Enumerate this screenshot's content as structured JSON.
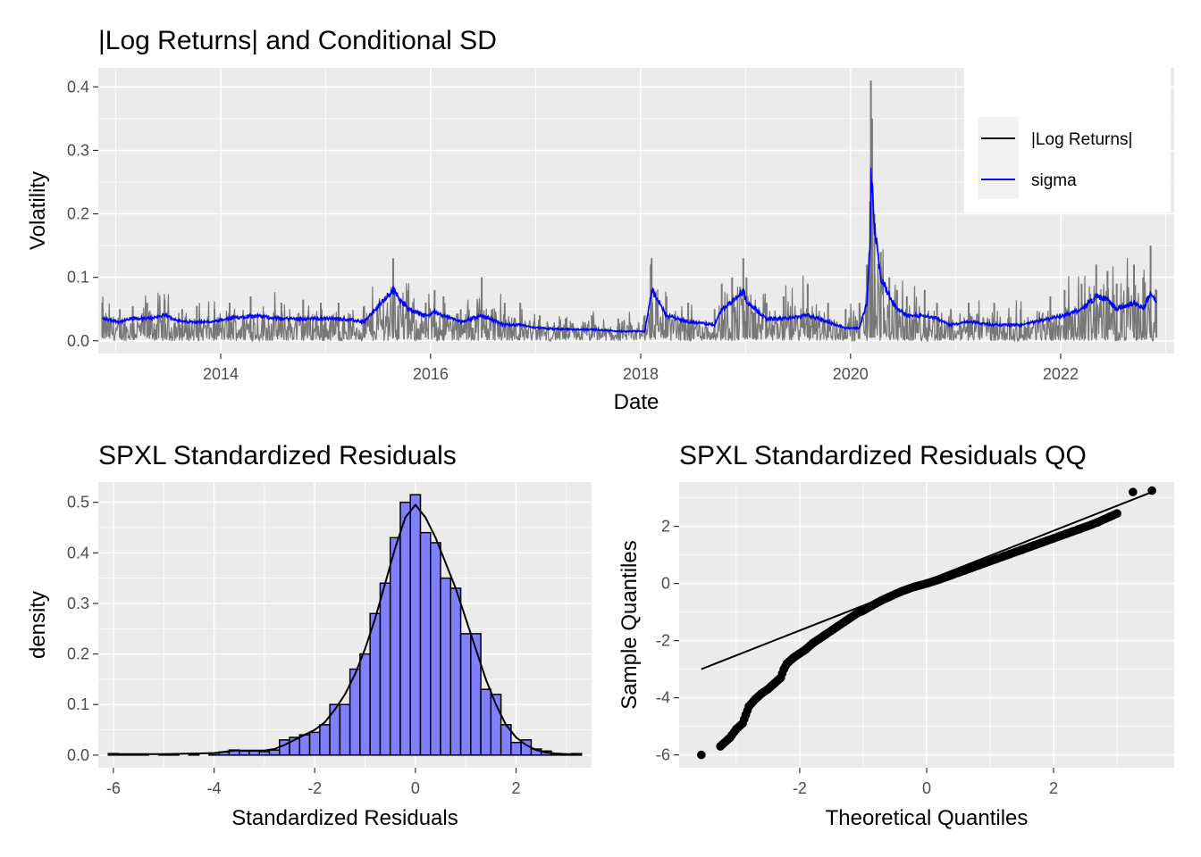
{
  "colors": {
    "panel_bg": "#ebebeb",
    "grid": "#ffffff",
    "abs_returns": "#777777",
    "sigma": "#0000ff",
    "hist_fill": "#8080ff",
    "qq_points": "#000000"
  },
  "chart_data": [
    {
      "type": "line",
      "title": "|Log Returns| and Conditional SD",
      "xlabel": "Date",
      "ylabel": "Volatility",
      "xlim": [
        "2012-11-01",
        "2023-01-31"
      ],
      "ylim": [
        -0.02,
        0.43
      ],
      "x_ticks": [
        "2014",
        "2016",
        "2018",
        "2020",
        "2022"
      ],
      "y_ticks": [
        "0.0",
        "0.1",
        "0.2",
        "0.3",
        "0.4"
      ],
      "grid": true,
      "legend": {
        "placement": "right",
        "items": [
          "|Log Returns|",
          "sigma"
        ]
      },
      "series": [
        {
          "name": "|Log Returns|",
          "color": "#000000",
          "x": [
            "2012-11-15",
            "2013-01-15",
            "2013-03-01",
            "2013-04-20",
            "2013-06-20",
            "2013-08-20",
            "2013-10-10",
            "2013-12-10",
            "2014-02-01",
            "2014-04-15",
            "2014-07-31",
            "2014-10-15",
            "2014-12-15",
            "2015-02-15",
            "2015-05-15",
            "2015-08-24",
            "2015-10-15",
            "2015-12-15",
            "2016-01-15",
            "2016-02-15",
            "2016-04-15",
            "2016-06-27",
            "2016-09-15",
            "2016-11-08",
            "2017-01-15",
            "2017-04-15",
            "2017-07-15",
            "2017-10-15",
            "2018-01-15",
            "2018-02-05",
            "2018-02-08",
            "2018-04-01",
            "2018-06-15",
            "2018-09-15",
            "2018-10-10",
            "2018-11-15",
            "2018-12-24",
            "2019-01-04",
            "2019-03-15",
            "2019-05-13",
            "2019-08-05",
            "2019-10-15",
            "2019-12-15",
            "2020-02-01",
            "2020-02-27",
            "2020-03-09",
            "2020-03-12",
            "2020-03-16",
            "2020-03-24",
            "2020-04-15",
            "2020-05-15",
            "2020-06-11",
            "2020-07-15",
            "2020-09-15",
            "2020-10-28",
            "2020-12-15",
            "2021-02-15",
            "2021-05-15",
            "2021-08-15",
            "2021-11-26",
            "2022-01-15",
            "2022-03-15",
            "2022-05-05",
            "2022-06-13",
            "2022-07-15",
            "2022-09-13",
            "2022-10-15",
            "2022-11-10",
            "2022-11-30"
          ],
          "values": [
            0.06,
            0.05,
            0.055,
            0.06,
            0.065,
            0.05,
            0.055,
            0.05,
            0.06,
            0.07,
            0.06,
            0.065,
            0.06,
            0.06,
            0.055,
            0.13,
            0.08,
            0.06,
            0.08,
            0.07,
            0.05,
            0.1,
            0.06,
            0.06,
            0.04,
            0.035,
            0.04,
            0.035,
            0.04,
            0.12,
            0.13,
            0.07,
            0.06,
            0.05,
            0.09,
            0.1,
            0.13,
            0.1,
            0.06,
            0.07,
            0.09,
            0.06,
            0.05,
            0.06,
            0.12,
            0.22,
            0.41,
            0.35,
            0.2,
            0.14,
            0.1,
            0.08,
            0.07,
            0.08,
            0.06,
            0.05,
            0.06,
            0.06,
            0.05,
            0.07,
            0.08,
            0.09,
            0.12,
            0.11,
            0.09,
            0.12,
            0.1,
            0.15,
            0.08
          ]
        },
        {
          "name": "sigma",
          "color": "#0000ff",
          "x": [
            "2012-11-15",
            "2013-01-15",
            "2013-03-01",
            "2013-04-20",
            "2013-06-20",
            "2013-08-20",
            "2013-10-10",
            "2013-12-10",
            "2014-02-01",
            "2014-04-15",
            "2014-07-31",
            "2014-10-15",
            "2014-12-15",
            "2015-02-15",
            "2015-05-15",
            "2015-08-24",
            "2015-10-15",
            "2015-12-15",
            "2016-01-15",
            "2016-02-15",
            "2016-04-15",
            "2016-06-27",
            "2016-09-15",
            "2016-11-08",
            "2017-01-15",
            "2017-04-15",
            "2017-07-15",
            "2017-10-15",
            "2018-01-15",
            "2018-02-05",
            "2018-02-08",
            "2018-04-01",
            "2018-06-15",
            "2018-09-15",
            "2018-10-10",
            "2018-11-15",
            "2018-12-24",
            "2019-01-04",
            "2019-03-15",
            "2019-05-13",
            "2019-08-05",
            "2019-10-15",
            "2019-12-15",
            "2020-02-01",
            "2020-02-27",
            "2020-03-09",
            "2020-03-12",
            "2020-03-16",
            "2020-03-24",
            "2020-04-15",
            "2020-05-15",
            "2020-06-11",
            "2020-07-15",
            "2020-09-15",
            "2020-10-28",
            "2020-12-15",
            "2021-02-15",
            "2021-05-15",
            "2021-08-15",
            "2021-11-26",
            "2022-01-15",
            "2022-03-15",
            "2022-05-05",
            "2022-06-13",
            "2022-07-15",
            "2022-09-13",
            "2022-10-15",
            "2022-11-10",
            "2022-11-30"
          ],
          "values": [
            0.035,
            0.03,
            0.035,
            0.035,
            0.04,
            0.03,
            0.03,
            0.03,
            0.035,
            0.04,
            0.035,
            0.035,
            0.035,
            0.035,
            0.03,
            0.08,
            0.05,
            0.04,
            0.045,
            0.04,
            0.03,
            0.04,
            0.025,
            0.025,
            0.02,
            0.018,
            0.018,
            0.015,
            0.015,
            0.07,
            0.08,
            0.04,
            0.03,
            0.025,
            0.05,
            0.06,
            0.08,
            0.06,
            0.035,
            0.035,
            0.04,
            0.03,
            0.02,
            0.02,
            0.06,
            0.15,
            0.265,
            0.24,
            0.18,
            0.1,
            0.07,
            0.05,
            0.04,
            0.04,
            0.035,
            0.025,
            0.03,
            0.025,
            0.025,
            0.035,
            0.04,
            0.05,
            0.07,
            0.065,
            0.05,
            0.06,
            0.05,
            0.075,
            0.06
          ]
        }
      ]
    },
    {
      "type": "bar",
      "title": "SPXL Standardized Residuals",
      "xlabel": "Standardized Residuals",
      "ylabel": "density",
      "xlim": [
        -6.3,
        3.5
      ],
      "ylim": [
        -0.025,
        0.54
      ],
      "x_ticks": [
        "-6",
        "-4",
        "-2",
        "0",
        "2"
      ],
      "y_ticks": [
        "0.0",
        "0.1",
        "0.2",
        "0.3",
        "0.4",
        "0.5"
      ],
      "grid": true,
      "bin_width": 0.2,
      "bin_centers": [
        -6.0,
        -5.8,
        -5.6,
        -5.4,
        -5.2,
        -5.0,
        -4.8,
        -4.6,
        -4.4,
        -4.2,
        -4.0,
        -3.8,
        -3.6,
        -3.4,
        -3.2,
        -3.0,
        -2.8,
        -2.6,
        -2.4,
        -2.2,
        -2.0,
        -1.8,
        -1.6,
        -1.4,
        -1.2,
        -1.0,
        -0.8,
        -0.6,
        -0.4,
        -0.2,
        0.0,
        0.2,
        0.4,
        0.6,
        0.8,
        1.0,
        1.2,
        1.4,
        1.6,
        1.8,
        2.0,
        2.2,
        2.4,
        2.6,
        2.8,
        3.0,
        3.2
      ],
      "values": [
        0.003,
        0.002,
        0.002,
        0.002,
        0.0,
        0.002,
        0.002,
        0.0,
        0.002,
        0.0,
        0.004,
        0.006,
        0.01,
        0.008,
        0.008,
        0.007,
        0.01,
        0.03,
        0.035,
        0.04,
        0.045,
        0.06,
        0.1,
        0.1,
        0.17,
        0.2,
        0.28,
        0.34,
        0.43,
        0.5,
        0.515,
        0.44,
        0.42,
        0.35,
        0.33,
        0.24,
        0.24,
        0.13,
        0.12,
        0.06,
        0.025,
        0.03,
        0.012,
        0.008,
        0.003,
        0.002,
        0.003
      ],
      "density_curve": {
        "x": [
          -6.0,
          -5.0,
          -4.0,
          -3.6,
          -3.2,
          -3.0,
          -2.8,
          -2.6,
          -2.4,
          -2.2,
          -2.0,
          -1.8,
          -1.6,
          -1.4,
          -1.2,
          -1.0,
          -0.8,
          -0.6,
          -0.4,
          -0.2,
          0.0,
          0.2,
          0.4,
          0.6,
          0.8,
          1.0,
          1.2,
          1.4,
          1.6,
          1.8,
          2.0,
          2.2,
          2.4,
          2.6,
          2.8,
          3.0,
          3.2
        ],
        "y": [
          0.002,
          0.002,
          0.004,
          0.009,
          0.009,
          0.009,
          0.012,
          0.02,
          0.03,
          0.04,
          0.05,
          0.065,
          0.09,
          0.12,
          0.16,
          0.21,
          0.27,
          0.34,
          0.41,
          0.47,
          0.495,
          0.47,
          0.43,
          0.38,
          0.33,
          0.27,
          0.21,
          0.15,
          0.1,
          0.06,
          0.035,
          0.02,
          0.01,
          0.005,
          0.003,
          0.002,
          0.001
        ]
      }
    },
    {
      "type": "scatter",
      "title": "SPXL Standardized Residuals QQ",
      "xlabel": "Theoretical Quantiles",
      "ylabel": "Sample Quantiles",
      "xlim": [
        -3.9,
        3.9
      ],
      "ylim": [
        -6.45,
        3.55
      ],
      "x_ticks": [
        "-2",
        "0",
        "2"
      ],
      "y_ticks": [
        "-6",
        "-4",
        "-2",
        "0",
        "2"
      ],
      "grid": true,
      "reference_line": {
        "x": [
          -3.55,
          3.55
        ],
        "y": [
          -3.0,
          3.2
        ]
      },
      "x": [
        -3.55,
        -3.25,
        -3.1,
        -3.0,
        -2.9,
        -2.85,
        -2.8,
        -2.7,
        -2.65,
        -2.6,
        -2.5,
        -2.45,
        -2.4,
        -2.35,
        -2.3,
        -2.25,
        -2.2,
        -2.1,
        -2.0,
        -1.9,
        -1.8,
        -1.7,
        -1.6,
        -1.5,
        -1.4,
        -1.3,
        -1.2,
        -1.1,
        -1.0,
        -0.9,
        -0.8,
        -0.7,
        -0.6,
        -0.5,
        -0.4,
        -0.3,
        -0.2,
        -0.1,
        0.0,
        0.1,
        0.2,
        0.3,
        0.4,
        0.5,
        0.6,
        0.7,
        0.8,
        0.9,
        1.0,
        1.1,
        1.2,
        1.3,
        1.4,
        1.5,
        1.6,
        1.7,
        1.8,
        1.9,
        2.0,
        2.1,
        2.2,
        2.3,
        2.4,
        2.5,
        2.6,
        2.7,
        2.8,
        2.9,
        3.0,
        3.25,
        3.55
      ],
      "y": [
        -6.0,
        -5.7,
        -5.4,
        -5.1,
        -4.9,
        -4.6,
        -4.3,
        -4.05,
        -3.95,
        -3.85,
        -3.7,
        -3.6,
        -3.5,
        -3.4,
        -3.3,
        -3.0,
        -2.8,
        -2.6,
        -2.45,
        -2.3,
        -2.1,
        -1.95,
        -1.8,
        -1.65,
        -1.5,
        -1.35,
        -1.2,
        -1.05,
        -0.95,
        -0.82,
        -0.7,
        -0.58,
        -0.48,
        -0.38,
        -0.28,
        -0.2,
        -0.12,
        -0.06,
        0.0,
        0.07,
        0.14,
        0.22,
        0.3,
        0.38,
        0.46,
        0.54,
        0.62,
        0.7,
        0.78,
        0.86,
        0.94,
        1.02,
        1.1,
        1.18,
        1.26,
        1.34,
        1.42,
        1.5,
        1.58,
        1.66,
        1.74,
        1.82,
        1.9,
        1.98,
        2.06,
        2.15,
        2.25,
        2.35,
        2.45,
        3.2,
        3.25
      ]
    }
  ]
}
